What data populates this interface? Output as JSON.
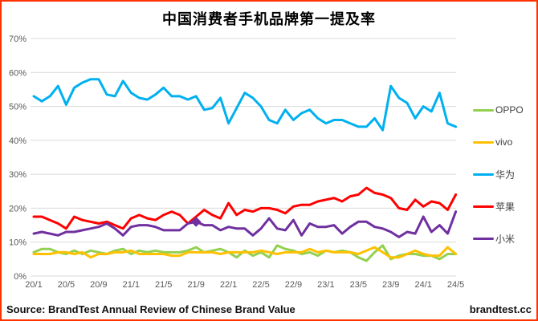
{
  "page": {
    "border_color": "#ff3300",
    "background": "#ffffff"
  },
  "title": "中国消费者手机品牌第一提及率",
  "source_note": "Source: BrandTest Annual Review of Chinese Brand Value",
  "site_credit": "brandtest.cc",
  "legend": {
    "position": "right",
    "items": [
      {
        "label": "OPPO",
        "color": "#92d050"
      },
      {
        "label": "vivo",
        "color": "#ffc000"
      },
      {
        "label": "华为",
        "color": "#00b0f0"
      },
      {
        "label": "苹果",
        "color": "#ff0000"
      },
      {
        "label": "小米",
        "color": "#7030a0"
      }
    ]
  },
  "chart_data": {
    "type": "line",
    "title": "中国消费者手机品牌第一提及率",
    "x_description": "Monthly values from 2020/1 to 2024/5 (53 points), tick labels every 4 months",
    "x_tick_labels": [
      "20/1",
      "20/5",
      "20/9",
      "21/1",
      "21/5",
      "21/9",
      "22/1",
      "22/5",
      "22/9",
      "23/1",
      "23/5",
      "23/9",
      "24/1",
      "24/5"
    ],
    "x_tick_indices": [
      0,
      4,
      8,
      12,
      16,
      20,
      24,
      28,
      32,
      36,
      40,
      44,
      48,
      52
    ],
    "y_tick_labels": [
      "0%",
      "10%",
      "20%",
      "30%",
      "40%",
      "50%",
      "60%",
      "70%"
    ],
    "ylim": [
      0,
      70
    ],
    "unit": "%",
    "grid": "horizontal",
    "legend_position": "right",
    "series": [
      {
        "name": "OPPO",
        "color": "#92d050",
        "values": [
          7,
          8,
          8,
          7,
          6.5,
          7.5,
          6.5,
          7.5,
          7,
          6.5,
          7.5,
          8,
          6.5,
          7.5,
          7,
          7.5,
          7,
          7,
          7,
          7.5,
          8.5,
          7,
          7.5,
          8,
          7,
          5.5,
          7.5,
          6,
          7,
          5.5,
          9,
          8,
          7.5,
          6.5,
          7,
          6,
          7.5,
          7,
          7.5,
          7,
          5.5,
          4.5,
          7,
          9,
          5,
          6,
          6.5,
          6.5,
          6,
          6,
          5,
          6.5,
          6.5
        ]
      },
      {
        "name": "vivo",
        "color": "#ffc000",
        "values": [
          6.5,
          6.5,
          6.5,
          7,
          7,
          6.5,
          7,
          5.5,
          6.5,
          6.5,
          7,
          7,
          7.5,
          6.5,
          6.5,
          6.5,
          6.5,
          6,
          6,
          7,
          7,
          7,
          7,
          6.5,
          7,
          7,
          7,
          7,
          7.5,
          7,
          6.5,
          7,
          7,
          7,
          8,
          7,
          7.5,
          7,
          7,
          7,
          6.5,
          7.5,
          8.5,
          7,
          5.5,
          5.5,
          6.5,
          7.5,
          6.5,
          6,
          6,
          8.5,
          6.5
        ]
      },
      {
        "name": "华为",
        "color": "#00b0f0",
        "values": [
          53,
          51.5,
          53,
          56,
          50.5,
          55.5,
          57,
          58,
          58,
          53.5,
          53,
          57.5,
          54,
          52.5,
          52,
          53.5,
          55.5,
          53,
          53,
          52,
          53,
          49,
          49.5,
          52.5,
          45,
          49.5,
          54,
          52.5,
          50,
          46,
          45,
          49,
          46,
          48,
          49,
          46.5,
          45,
          46,
          46,
          45,
          44,
          44,
          46.5,
          43,
          56,
          52.5,
          51,
          46.5,
          50,
          48.5,
          54,
          45,
          44
        ]
      },
      {
        "name": "苹果",
        "color": "#ff0000",
        "values": [
          17.5,
          17.5,
          16.5,
          15.5,
          14,
          17.5,
          16.5,
          16,
          15.5,
          16,
          15,
          14,
          17,
          18,
          17,
          16.5,
          18,
          19,
          18,
          15.5,
          17.5,
          19.5,
          18,
          17,
          21.5,
          18,
          19.5,
          19,
          20,
          20,
          19.5,
          18.5,
          20.5,
          21,
          21,
          22,
          22.5,
          23,
          22,
          23.5,
          24,
          26,
          24.5,
          24,
          23,
          20,
          19.5,
          22.5,
          20.5,
          22,
          21.5,
          19.5,
          24
        ]
      },
      {
        "name": "小米",
        "color": "#7030a0",
        "values": [
          12.5,
          13,
          12.5,
          12,
          13,
          13,
          13.5,
          14,
          14.5,
          15.5,
          14,
          12,
          14.5,
          15,
          15,
          14.5,
          13.5,
          13.5,
          13.5,
          15.5,
          16,
          15,
          15,
          13.5,
          14.5,
          14,
          14,
          12,
          14,
          17,
          14,
          13.5,
          16.5,
          12,
          15.5,
          14.5,
          14.5,
          15,
          12.5,
          14.5,
          16,
          16,
          14.5,
          14,
          13,
          11.5,
          13,
          12.5,
          17.5,
          13,
          15,
          12.5,
          19
        ],
        "marker": {
          "index": 20,
          "shape": "diamond",
          "x_label": "21/9",
          "value": 16
        }
      }
    ]
  }
}
